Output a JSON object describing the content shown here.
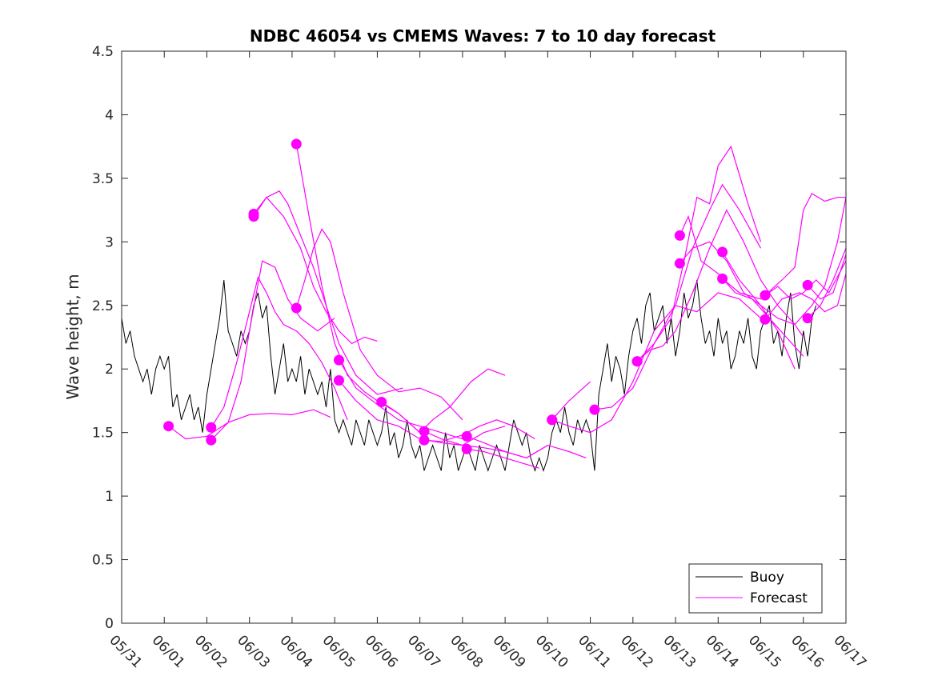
{
  "chart_data": {
    "type": "line",
    "title": "NDBC 46054 vs CMEMS Waves: 7 to 10 day forecast",
    "xlabel": "",
    "ylabel": "Wave height, m",
    "xlim": [
      "05/31",
      "06/17"
    ],
    "ylim": [
      0,
      4.5
    ],
    "x_ticks": [
      "05/31",
      "06/01",
      "06/02",
      "06/03",
      "06/04",
      "06/05",
      "06/06",
      "06/07",
      "06/08",
      "06/09",
      "06/10",
      "06/11",
      "06/12",
      "06/13",
      "06/14",
      "06/15",
      "06/16",
      "06/17"
    ],
    "y_ticks": [
      "0",
      "0.5",
      "1",
      "1.5",
      "2",
      "2.5",
      "3",
      "3.5",
      "4",
      "4.5"
    ],
    "grid": false,
    "legend": {
      "placement": "bottom-right",
      "entries": [
        "Buoy",
        "Forecast"
      ]
    },
    "colors": {
      "buoy": "#000000",
      "forecast": "#ff00ff"
    },
    "buoy_series": {
      "name": "Buoy",
      "x_days_from_0531": [
        0.0,
        0.1,
        0.2,
        0.3,
        0.4,
        0.5,
        0.6,
        0.7,
        0.8,
        0.9,
        1.0,
        1.1,
        1.2,
        1.3,
        1.4,
        1.5,
        1.6,
        1.7,
        1.8,
        1.9,
        2.0,
        2.1,
        2.2,
        2.3,
        2.4,
        2.5,
        2.6,
        2.7,
        2.8,
        2.9,
        3.0,
        3.1,
        3.2,
        3.3,
        3.4,
        3.5,
        3.6,
        3.7,
        3.8,
        3.9,
        4.0,
        4.1,
        4.2,
        4.3,
        4.4,
        4.5,
        4.6,
        4.7,
        4.8,
        4.9,
        5.0,
        5.1,
        5.2,
        5.3,
        5.4,
        5.5,
        5.6,
        5.7,
        5.8,
        5.9,
        6.0,
        6.1,
        6.2,
        6.3,
        6.4,
        6.5,
        6.6,
        6.7,
        6.8,
        6.9,
        7.0,
        7.1,
        7.2,
        7.3,
        7.4,
        7.5,
        7.6,
        7.7,
        7.8,
        7.9,
        8.0,
        8.1,
        8.2,
        8.3,
        8.4,
        8.5,
        8.6,
        8.7,
        8.8,
        8.9,
        9.0,
        9.1,
        9.2,
        9.3,
        9.4,
        9.5,
        9.6,
        9.7,
        9.8,
        9.9,
        10.0,
        10.1,
        10.2,
        10.3,
        10.4,
        10.5,
        10.6,
        10.7,
        10.8,
        10.9,
        11.0,
        11.1,
        11.2,
        11.3,
        11.4,
        11.5,
        11.6,
        11.7,
        11.8,
        11.9,
        12.0,
        12.1,
        12.2,
        12.3,
        12.4,
        12.5,
        12.6,
        12.7,
        12.8,
        12.9,
        13.0,
        13.1,
        13.2,
        13.3,
        13.4,
        13.5,
        13.6,
        13.7,
        13.8,
        13.9,
        14.0,
        14.1,
        14.2,
        14.3,
        14.4,
        14.5,
        14.6,
        14.7,
        14.8,
        14.9,
        15.0,
        15.1,
        15.2,
        15.3,
        15.4,
        15.5,
        15.6,
        15.7,
        15.8,
        15.9,
        16.0,
        16.1,
        16.2,
        16.3
      ],
      "y": [
        2.4,
        2.2,
        2.3,
        2.1,
        2.0,
        1.9,
        2.0,
        1.8,
        2.0,
        2.1,
        2.0,
        2.1,
        1.7,
        1.8,
        1.6,
        1.7,
        1.8,
        1.6,
        1.7,
        1.5,
        1.8,
        2.0,
        2.2,
        2.4,
        2.7,
        2.3,
        2.2,
        2.1,
        2.3,
        2.2,
        2.3,
        2.5,
        2.6,
        2.4,
        2.5,
        2.1,
        1.8,
        2.0,
        2.2,
        1.9,
        2.0,
        1.9,
        2.1,
        1.8,
        2.0,
        1.9,
        1.8,
        1.9,
        1.7,
        2.0,
        1.6,
        1.5,
        1.6,
        1.5,
        1.4,
        1.6,
        1.5,
        1.4,
        1.6,
        1.5,
        1.4,
        1.5,
        1.7,
        1.4,
        1.5,
        1.3,
        1.4,
        1.6,
        1.4,
        1.3,
        1.4,
        1.2,
        1.3,
        1.4,
        1.3,
        1.2,
        1.5,
        1.3,
        1.4,
        1.2,
        1.3,
        1.4,
        1.3,
        1.2,
        1.4,
        1.3,
        1.2,
        1.3,
        1.4,
        1.3,
        1.2,
        1.4,
        1.6,
        1.5,
        1.4,
        1.5,
        1.3,
        1.2,
        1.3,
        1.2,
        1.3,
        1.5,
        1.6,
        1.5,
        1.7,
        1.5,
        1.4,
        1.6,
        1.5,
        1.6,
        1.5,
        1.2,
        1.8,
        2.0,
        2.2,
        1.9,
        2.1,
        2.0,
        1.8,
        2.1,
        2.3,
        2.4,
        2.2,
        2.5,
        2.6,
        2.3,
        2.4,
        2.5,
        2.2,
        2.4,
        2.1,
        2.3,
        2.6,
        2.4,
        2.5,
        2.7,
        2.4,
        2.2,
        2.3,
        2.1,
        2.4,
        2.2,
        2.3,
        2.0,
        2.1,
        2.3,
        2.2,
        2.4,
        2.1,
        2.0,
        2.3,
        2.4,
        2.5,
        2.2,
        2.3,
        2.1,
        2.4,
        2.6,
        2.2,
        2.0,
        2.3,
        2.1,
        2.4,
        2.5,
        2.2,
        2.3
      ]
    },
    "forecast_series": [
      {
        "name": "Forecast",
        "x_days_from_0531": [
          1.1,
          1.5,
          2.0,
          2.5,
          3.0,
          3.5,
          4.0,
          4.5,
          4.9
        ],
        "y": [
          1.55,
          1.45,
          1.47,
          1.58,
          1.64,
          1.65,
          1.64,
          1.68,
          1.62
        ]
      },
      {
        "name": "Forecast",
        "x_days_from_0531": [
          2.1,
          2.5,
          2.8,
          3.0,
          3.3,
          3.6,
          3.9,
          4.2,
          4.6,
          5.0
        ],
        "y": [
          1.44,
          1.58,
          1.9,
          2.3,
          2.85,
          2.8,
          2.55,
          2.4,
          2.3,
          2.4
        ]
      },
      {
        "name": "Forecast",
        "x_days_from_0531": [
          2.1,
          2.4,
          2.7,
          3.0,
          3.2,
          3.4,
          3.6,
          3.8,
          4.1,
          4.4,
          4.7,
          5.0,
          5.3
        ],
        "y": [
          1.54,
          1.7,
          2.05,
          2.45,
          2.72,
          2.6,
          2.45,
          2.35,
          2.3,
          2.2,
          2.05,
          1.85,
          1.6
        ]
      },
      {
        "name": "Forecast",
        "x_days_from_0531": [
          3.1,
          3.4,
          3.7,
          3.9,
          4.2,
          4.5,
          4.8,
          5.1,
          5.5,
          6.0,
          6.6
        ],
        "y": [
          3.2,
          3.35,
          3.4,
          3.3,
          3.05,
          2.8,
          2.5,
          2.2,
          1.95,
          1.8,
          1.85
        ]
      },
      {
        "name": "Forecast",
        "x_days_from_0531": [
          3.1,
          3.4,
          3.8,
          4.2,
          4.5,
          4.8,
          5.1,
          5.4,
          5.7,
          6.0
        ],
        "y": [
          3.22,
          3.35,
          3.2,
          2.95,
          2.65,
          2.45,
          2.3,
          2.2,
          2.25,
          2.22
        ]
      },
      {
        "name": "Forecast",
        "x_days_from_0531": [
          4.1,
          4.4,
          4.7,
          5.0,
          5.3,
          5.7,
          6.0,
          6.5,
          7.0
        ],
        "y": [
          3.77,
          3.2,
          2.65,
          2.2,
          1.95,
          1.82,
          1.75,
          1.65,
          1.5
        ]
      },
      {
        "name": "Forecast",
        "x_days_from_0531": [
          4.1,
          4.3,
          4.5,
          4.7,
          4.9,
          5.2,
          5.6,
          6.0,
          6.5,
          7.0,
          7.5,
          8.0
        ],
        "y": [
          2.48,
          2.7,
          2.95,
          3.1,
          3.0,
          2.6,
          2.15,
          1.95,
          1.82,
          1.85,
          1.78,
          1.6
        ]
      },
      {
        "name": "Forecast",
        "x_days_from_0531": [
          5.1,
          5.5,
          6.0,
          6.5,
          7.0,
          7.5,
          8.0
        ],
        "y": [
          2.07,
          1.85,
          1.72,
          1.6,
          1.55,
          1.5,
          1.45
        ]
      },
      {
        "name": "Forecast",
        "x_days_from_0531": [
          5.1,
          5.5,
          6.0,
          6.5,
          7.0,
          7.5,
          8.0,
          8.5,
          9.0
        ],
        "y": [
          1.91,
          1.75,
          1.6,
          1.55,
          1.45,
          1.42,
          1.4,
          1.5,
          1.55
        ]
      },
      {
        "name": "Forecast",
        "x_days_from_0531": [
          6.1,
          6.5,
          7.0,
          7.3,
          7.7,
          8.2,
          8.6,
          9.0
        ],
        "y": [
          1.74,
          1.65,
          1.5,
          1.6,
          1.7,
          1.9,
          2.0,
          1.95
        ]
      },
      {
        "name": "Forecast",
        "x_days_from_0531": [
          7.1,
          7.5,
          8.0,
          8.5,
          9.0,
          9.5,
          10.0
        ],
        "y": [
          1.51,
          1.45,
          1.4,
          1.38,
          1.35,
          1.3,
          1.4
        ]
      },
      {
        "name": "Forecast",
        "x_days_from_0531": [
          7.1,
          7.5,
          8.0,
          8.4,
          8.8,
          9.2,
          9.7
        ],
        "y": [
          1.44,
          1.43,
          1.48,
          1.55,
          1.6,
          1.55,
          1.45
        ]
      },
      {
        "name": "Forecast",
        "x_days_from_0531": [
          8.1,
          8.5,
          9.0,
          9.5,
          10.0,
          10.5,
          10.9
        ],
        "y": [
          1.47,
          1.42,
          1.35,
          1.3,
          1.4,
          1.35,
          1.3
        ]
      },
      {
        "name": "Forecast",
        "x_days_from_0531": [
          8.1,
          8.5,
          9.0,
          9.5,
          9.8
        ],
        "y": [
          1.37,
          1.35,
          1.3,
          1.25,
          1.22
        ]
      },
      {
        "name": "Forecast",
        "x_days_from_0531": [
          10.1,
          10.5,
          11.0,
          11.5,
          12.0,
          12.5,
          13.0,
          13.5,
          14.0,
          14.5,
          15.0
        ],
        "y": [
          1.6,
          1.55,
          1.5,
          1.6,
          1.9,
          2.3,
          2.5,
          2.45,
          2.6,
          2.55,
          2.4
        ]
      },
      {
        "name": "Forecast",
        "x_days_from_0531": [
          10.1,
          10.5,
          11.0
        ],
        "y": [
          1.6,
          1.75,
          1.9
        ]
      },
      {
        "name": "Forecast",
        "x_days_from_0531": [
          11.1,
          11.5,
          12.0,
          12.5,
          13.0,
          13.4,
          13.8,
          14.1,
          14.5,
          15.0
        ],
        "y": [
          1.68,
          1.7,
          1.85,
          2.2,
          2.5,
          2.95,
          3.25,
          3.45,
          3.25,
          2.95
        ]
      },
      {
        "name": "Forecast",
        "x_days_from_0531": [
          12.1,
          12.5,
          12.9,
          13.2,
          13.5,
          13.8,
          14.0,
          14.3,
          14.7,
          15.0
        ],
        "y": [
          2.06,
          2.2,
          2.4,
          2.85,
          3.35,
          3.3,
          3.6,
          3.75,
          3.3,
          3.0
        ]
      },
      {
        "name": "Forecast",
        "x_days_from_0531": [
          12.1,
          12.4,
          12.7,
          13.0,
          13.4,
          13.8,
          14.2,
          14.6,
          15.0,
          15.4,
          15.8,
          16.0
        ],
        "y": [
          2.06,
          2.15,
          2.18,
          2.3,
          2.6,
          2.95,
          3.25,
          3.0,
          2.7,
          2.5,
          2.35,
          2.25
        ]
      },
      {
        "name": "Forecast",
        "x_days_from_0531": [
          13.1,
          13.3,
          13.6,
          14.0,
          14.4,
          14.8,
          15.2,
          15.6,
          16.0
        ],
        "y": [
          3.05,
          3.2,
          2.85,
          2.75,
          2.6,
          2.55,
          2.4,
          2.25,
          2.1
        ]
      },
      {
        "name": "Forecast",
        "x_days_from_0531": [
          13.1,
          13.4,
          13.8,
          14.2,
          14.6,
          15.0,
          15.4,
          15.8
        ],
        "y": [
          2.83,
          2.95,
          3.0,
          2.85,
          2.6,
          2.5,
          2.3,
          2.0
        ]
      },
      {
        "name": "Forecast",
        "x_days_from_0531": [
          14.1,
          14.5,
          15.0,
          15.4,
          15.8,
          16.2,
          16.5,
          16.8,
          17.0
        ],
        "y": [
          2.92,
          2.7,
          2.5,
          2.4,
          2.35,
          2.5,
          2.65,
          3.0,
          3.35
        ]
      },
      {
        "name": "Forecast",
        "x_days_from_0531": [
          14.1,
          14.5,
          15.0,
          15.4,
          15.7,
          16.0,
          16.3,
          16.6,
          17.0
        ],
        "y": [
          2.71,
          2.6,
          2.55,
          2.65,
          2.55,
          2.6,
          2.7,
          2.6,
          2.85
        ]
      },
      {
        "name": "Forecast",
        "x_days_from_0531": [
          15.1,
          15.5,
          15.8,
          16.0,
          16.2,
          16.5,
          16.8,
          17.0
        ],
        "y": [
          2.58,
          2.7,
          2.8,
          3.25,
          3.38,
          3.32,
          3.35,
          3.35
        ]
      },
      {
        "name": "Forecast",
        "x_days_from_0531": [
          15.1,
          15.5,
          15.9,
          16.2,
          16.5,
          16.8,
          17.0
        ],
        "y": [
          2.39,
          2.55,
          2.6,
          2.55,
          2.45,
          2.5,
          2.75
        ]
      },
      {
        "name": "Forecast",
        "x_days_from_0531": [
          16.1,
          16.4,
          16.7,
          17.0
        ],
        "y": [
          2.66,
          2.55,
          2.6,
          2.9
        ]
      },
      {
        "name": "Forecast",
        "x_days_from_0531": [
          16.1,
          16.4,
          16.7,
          17.0
        ],
        "y": [
          2.4,
          2.5,
          2.7,
          2.95
        ]
      }
    ]
  }
}
